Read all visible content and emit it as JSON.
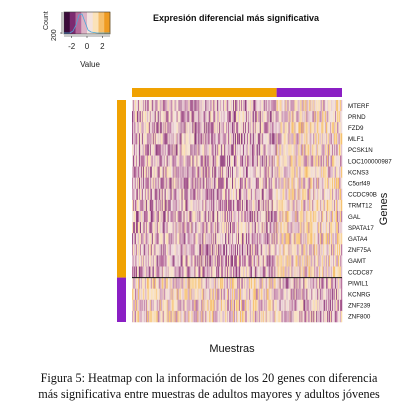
{
  "chart_data": {
    "type": "heatmap",
    "title": "Expresión diferencial más significativa",
    "xlabel": "Muestras",
    "ylabel": "Genes",
    "genes": [
      "MTERF",
      "PRND",
      "FZD9",
      "MLF1",
      "PCSK1N",
      "LOC100000987",
      "KCNS3",
      "C5orf49",
      "CCDC90B",
      "TRMT12",
      "GAL",
      "SPATA17",
      "GATA4",
      "ZNF75A",
      "GAMT",
      "CCDC87",
      "PIWIL1",
      "KCNRG",
      "ZNF239",
      "ZNF800"
    ],
    "sample_groups": [
      {
        "color": "#f0a202",
        "count": 146
      },
      {
        "color": "#8a1fc4",
        "count": 66
      }
    ],
    "gene_groups": [
      {
        "color": "#f0a202",
        "count": 16
      },
      {
        "color": "#8a1fc4",
        "count": 4
      }
    ],
    "color_key": {
      "title": "Value",
      "count_label": "Count",
      "count_tick": "200",
      "ticks": [
        "-2",
        "0",
        "2"
      ],
      "range": [
        -3,
        3
      ],
      "colors": [
        "#3b0b3a",
        "#7c2a70",
        "#b56a9a",
        "#dcb3c6",
        "#f3e3df",
        "#fbe2b8",
        "#f6bf6b",
        "#ef9b22"
      ]
    }
  },
  "caption": {
    "line1": "Figura 5: Heatmap con la información de los 20 genes con diferencia",
    "line2": "más significativa entre muestras de adultos mayores y adultos jóvenes"
  }
}
